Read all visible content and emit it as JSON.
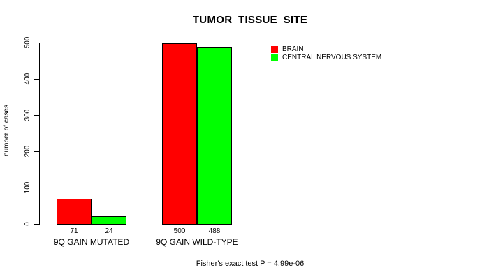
{
  "chart_data": {
    "type": "bar",
    "title": "TUMOR_TISSUE_SITE",
    "categories": [
      "9Q GAIN MUTATED",
      "9Q GAIN WILD-TYPE"
    ],
    "series": [
      {
        "name": "BRAIN",
        "color": "#ff0000",
        "values": [
          71,
          500
        ]
      },
      {
        "name": "CENTRAL NERVOUS SYSTEM",
        "color": "#00ff00",
        "values": [
          24,
          488
        ]
      }
    ],
    "xlabel": "",
    "ylabel": "number of cases",
    "ylim": [
      0,
      500
    ],
    "yticks": [
      0,
      100,
      200,
      300,
      400,
      500
    ],
    "bar_value_labels": [
      [
        "71",
        "24"
      ],
      [
        "500",
        "488"
      ]
    ],
    "grid": false,
    "legend_position": "top-right",
    "annotation": "Fisher's exact test P = 4.99e-06"
  },
  "colors": {
    "background": "#ffffff",
    "axis": "#000000",
    "text": "#000000"
  }
}
